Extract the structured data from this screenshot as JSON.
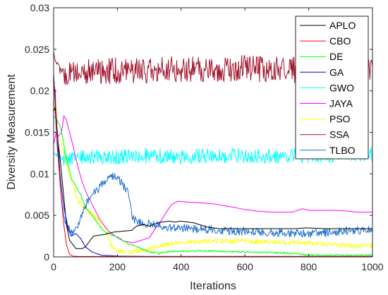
{
  "chart_data": {
    "type": "line",
    "title": "",
    "xlabel": "Iterations",
    "ylabel": "Diversity Measurement",
    "xlim": [
      0,
      1000
    ],
    "ylim": [
      0,
      0.03
    ],
    "x_ticks": [
      "0",
      "200",
      "400",
      "600",
      "800",
      "1000"
    ],
    "y_ticks": [
      "0",
      "0.005",
      "0.01",
      "0.015",
      "0.02",
      "0.025",
      "0.03"
    ],
    "grid": false,
    "legend_position": "top-right",
    "series": [
      {
        "name": "APLO",
        "color": "#000000",
        "noise": 0,
        "points": [
          [
            0,
            0.0175
          ],
          [
            5,
            0.018
          ],
          [
            10,
            0.015
          ],
          [
            20,
            0.012
          ],
          [
            30,
            0.008
          ],
          [
            40,
            0.004
          ],
          [
            50,
            0.002
          ],
          [
            70,
            0.001
          ],
          [
            90,
            0.001
          ],
          [
            100,
            0.0012
          ],
          [
            115,
            0.002
          ],
          [
            125,
            0.0025
          ],
          [
            140,
            0.0026
          ],
          [
            160,
            0.0027
          ],
          [
            190,
            0.003
          ],
          [
            220,
            0.0031
          ],
          [
            245,
            0.0032
          ],
          [
            260,
            0.0037
          ],
          [
            280,
            0.0039
          ],
          [
            300,
            0.0037
          ],
          [
            320,
            0.004
          ],
          [
            340,
            0.0042
          ],
          [
            360,
            0.0043
          ],
          [
            380,
            0.0042
          ],
          [
            400,
            0.0043
          ],
          [
            440,
            0.0041
          ],
          [
            480,
            0.0036
          ],
          [
            520,
            0.0034
          ],
          [
            600,
            0.0034
          ],
          [
            700,
            0.0034
          ],
          [
            760,
            0.0034
          ],
          [
            790,
            0.0035
          ],
          [
            850,
            0.0034
          ],
          [
            1000,
            0.0034
          ]
        ]
      },
      {
        "name": "CBO",
        "color": "#ff0000",
        "noise": 0,
        "points": [
          [
            0,
            0.021
          ],
          [
            5,
            0.02
          ],
          [
            10,
            0.015
          ],
          [
            20,
            0.009
          ],
          [
            30,
            0.0045
          ],
          [
            40,
            0.0015
          ],
          [
            50,
            0.0003
          ],
          [
            60,
            0.0001
          ],
          [
            80,
            5e-05
          ],
          [
            1000,
            5e-05
          ]
        ]
      },
      {
        "name": "DE",
        "color": "#00ff00",
        "noise": 0.0001,
        "points": [
          [
            0,
            0.017
          ],
          [
            10,
            0.0165
          ],
          [
            20,
            0.0158
          ],
          [
            30,
            0.014
          ],
          [
            40,
            0.012
          ],
          [
            55,
            0.0095
          ],
          [
            70,
            0.0085
          ],
          [
            85,
            0.0075
          ],
          [
            100,
            0.006
          ],
          [
            120,
            0.005
          ],
          [
            140,
            0.004
          ],
          [
            160,
            0.003
          ],
          [
            180,
            0.0027
          ],
          [
            200,
            0.0024
          ],
          [
            230,
            0.0017
          ],
          [
            260,
            0.0012
          ],
          [
            300,
            0.0006
          ],
          [
            330,
            0.0004
          ],
          [
            350,
            0.0006
          ],
          [
            400,
            0.0007
          ],
          [
            500,
            0.0007
          ],
          [
            600,
            0.0006
          ],
          [
            700,
            0.0005
          ],
          [
            760,
            0.0004
          ],
          [
            800,
            0.0002
          ],
          [
            900,
            0.0002
          ],
          [
            1000,
            0.0002
          ]
        ]
      },
      {
        "name": "GA",
        "color": "#0000cd",
        "noise": 0,
        "points": [
          [
            0,
            0.022
          ],
          [
            10,
            0.016
          ],
          [
            20,
            0.01
          ],
          [
            30,
            0.0065
          ],
          [
            45,
            0.0035
          ],
          [
            55,
            0.0025
          ],
          [
            70,
            0.0028
          ],
          [
            85,
            0.0022
          ],
          [
            100,
            0.0012
          ],
          [
            120,
            0.0006
          ],
          [
            150,
            0.0002
          ],
          [
            200,
            0.0001
          ],
          [
            300,
            5e-05
          ],
          [
            1000,
            5e-05
          ]
        ]
      },
      {
        "name": "GWO",
        "color": "#00ffff",
        "noise": 0.0009,
        "points": [
          [
            0,
            0.0125
          ],
          [
            20,
            0.012
          ],
          [
            40,
            0.0118
          ],
          [
            100,
            0.012
          ],
          [
            200,
            0.012
          ],
          [
            300,
            0.0122
          ],
          [
            400,
            0.012
          ],
          [
            500,
            0.0122
          ],
          [
            600,
            0.0122
          ],
          [
            700,
            0.0121
          ],
          [
            800,
            0.0122
          ],
          [
            900,
            0.0123
          ],
          [
            1000,
            0.0123
          ]
        ]
      },
      {
        "name": "JAYA",
        "color": "#ff00ff",
        "noise": 0,
        "points": [
          [
            0,
            0.0135
          ],
          [
            8,
            0.015
          ],
          [
            15,
            0.0145
          ],
          [
            25,
            0.015
          ],
          [
            32,
            0.017
          ],
          [
            40,
            0.0165
          ],
          [
            50,
            0.015
          ],
          [
            60,
            0.0135
          ],
          [
            75,
            0.011
          ],
          [
            90,
            0.009
          ],
          [
            105,
            0.0075
          ],
          [
            125,
            0.006
          ],
          [
            145,
            0.0045
          ],
          [
            170,
            0.0032
          ],
          [
            200,
            0.0023
          ],
          [
            220,
            0.0019
          ],
          [
            250,
            0.0017
          ],
          [
            300,
            0.0023
          ],
          [
            320,
            0.0035
          ],
          [
            340,
            0.0045
          ],
          [
            355,
            0.0055
          ],
          [
            370,
            0.0063
          ],
          [
            390,
            0.0067
          ],
          [
            420,
            0.0066
          ],
          [
            460,
            0.0065
          ],
          [
            500,
            0.0064
          ],
          [
            530,
            0.0062
          ],
          [
            560,
            0.006
          ],
          [
            600,
            0.0057
          ],
          [
            640,
            0.0055
          ],
          [
            680,
            0.0054
          ],
          [
            720,
            0.0054
          ],
          [
            750,
            0.0054
          ],
          [
            780,
            0.0058
          ],
          [
            800,
            0.0056
          ],
          [
            850,
            0.0056
          ],
          [
            900,
            0.0056
          ],
          [
            950,
            0.0054
          ],
          [
            1000,
            0.0054
          ]
        ]
      },
      {
        "name": "PSO",
        "color": "#ffff00",
        "noise": 0.0003,
        "points": [
          [
            0,
            0.019
          ],
          [
            8,
            0.0165
          ],
          [
            15,
            0.0145
          ],
          [
            25,
            0.0135
          ],
          [
            35,
            0.012
          ],
          [
            45,
            0.0105
          ],
          [
            55,
            0.0095
          ],
          [
            65,
            0.008
          ],
          [
            80,
            0.0065
          ],
          [
            95,
            0.006
          ],
          [
            110,
            0.0055
          ],
          [
            125,
            0.005
          ],
          [
            140,
            0.0045
          ],
          [
            160,
            0.0035
          ],
          [
            180,
            0.0015
          ],
          [
            200,
            0.0007
          ],
          [
            240,
            0.0005
          ],
          [
            280,
            0.0008
          ],
          [
            320,
            0.0012
          ],
          [
            360,
            0.0015
          ],
          [
            400,
            0.0018
          ],
          [
            450,
            0.0018
          ],
          [
            500,
            0.0019
          ],
          [
            550,
            0.0019
          ],
          [
            600,
            0.0019
          ],
          [
            650,
            0.0018
          ],
          [
            700,
            0.0018
          ],
          [
            750,
            0.0017
          ],
          [
            800,
            0.0017
          ],
          [
            850,
            0.0015
          ],
          [
            900,
            0.0014
          ],
          [
            950,
            0.0013
          ],
          [
            1000,
            0.0014
          ]
        ]
      },
      {
        "name": "SSA",
        "color": "#a0142d",
        "noise": 0.0016,
        "points": [
          [
            0,
            0.0245
          ],
          [
            10,
            0.0235
          ],
          [
            20,
            0.0225
          ],
          [
            40,
            0.022
          ],
          [
            100,
            0.0222
          ],
          [
            200,
            0.0225
          ],
          [
            300,
            0.0225
          ],
          [
            400,
            0.0226
          ],
          [
            500,
            0.0226
          ],
          [
            600,
            0.0228
          ],
          [
            700,
            0.0225
          ],
          [
            800,
            0.0226
          ],
          [
            900,
            0.0226
          ],
          [
            1000,
            0.0227
          ]
        ]
      },
      {
        "name": "TLBO",
        "color": "#1e6fd0",
        "noise": 0.0005,
        "points": [
          [
            0,
            0.022
          ],
          [
            5,
            0.018
          ],
          [
            10,
            0.014
          ],
          [
            18,
            0.01
          ],
          [
            25,
            0.0065
          ],
          [
            35,
            0.0045
          ],
          [
            45,
            0.0035
          ],
          [
            60,
            0.0028
          ],
          [
            80,
            0.0042
          ],
          [
            100,
            0.0062
          ],
          [
            120,
            0.0075
          ],
          [
            140,
            0.0082
          ],
          [
            160,
            0.0092
          ],
          [
            180,
            0.0098
          ],
          [
            200,
            0.0095
          ],
          [
            220,
            0.0085
          ],
          [
            235,
            0.0075
          ],
          [
            245,
            0.005
          ],
          [
            260,
            0.0042
          ],
          [
            300,
            0.004
          ],
          [
            350,
            0.0036
          ],
          [
            400,
            0.0035
          ],
          [
            450,
            0.0034
          ],
          [
            500,
            0.0033
          ],
          [
            550,
            0.0031
          ],
          [
            600,
            0.0031
          ],
          [
            650,
            0.003
          ],
          [
            700,
            0.0029
          ],
          [
            760,
            0.0029
          ],
          [
            800,
            0.0028
          ],
          [
            850,
            0.0029
          ],
          [
            900,
            0.0031
          ],
          [
            950,
            0.0032
          ],
          [
            1000,
            0.0032
          ]
        ]
      }
    ]
  }
}
